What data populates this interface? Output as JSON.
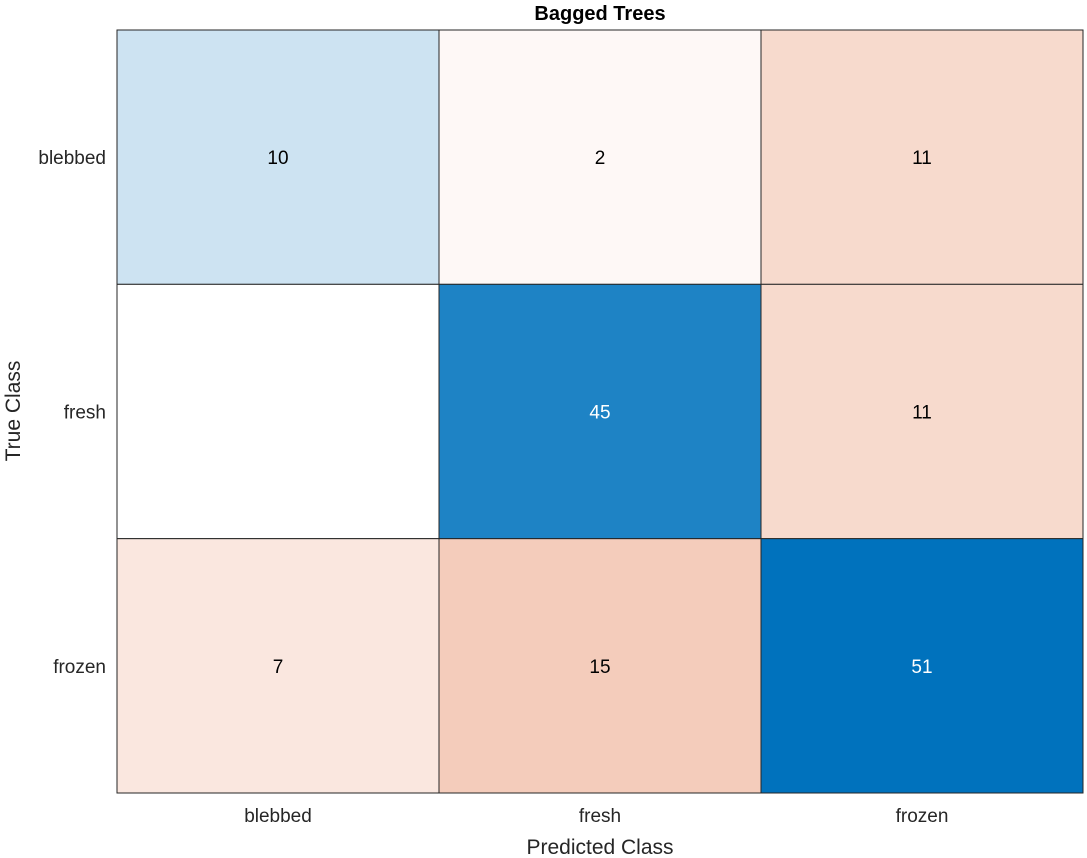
{
  "chart_data": {
    "type": "heatmap",
    "title": "Bagged Trees",
    "xlabel": "Predicted Class",
    "ylabel": "True Class",
    "x_categories": [
      "blebbed",
      "fresh",
      "frozen"
    ],
    "y_categories": [
      "blebbed",
      "fresh",
      "frozen"
    ],
    "values": [
      [
        10,
        2,
        11
      ],
      [
        null,
        45,
        11
      ],
      [
        7,
        15,
        51
      ]
    ],
    "colors": {
      "correct_max": "#0072BD",
      "incorrect_max": "#D95319",
      "empty": "#FFFFFF",
      "grid_line": "#262626"
    }
  }
}
